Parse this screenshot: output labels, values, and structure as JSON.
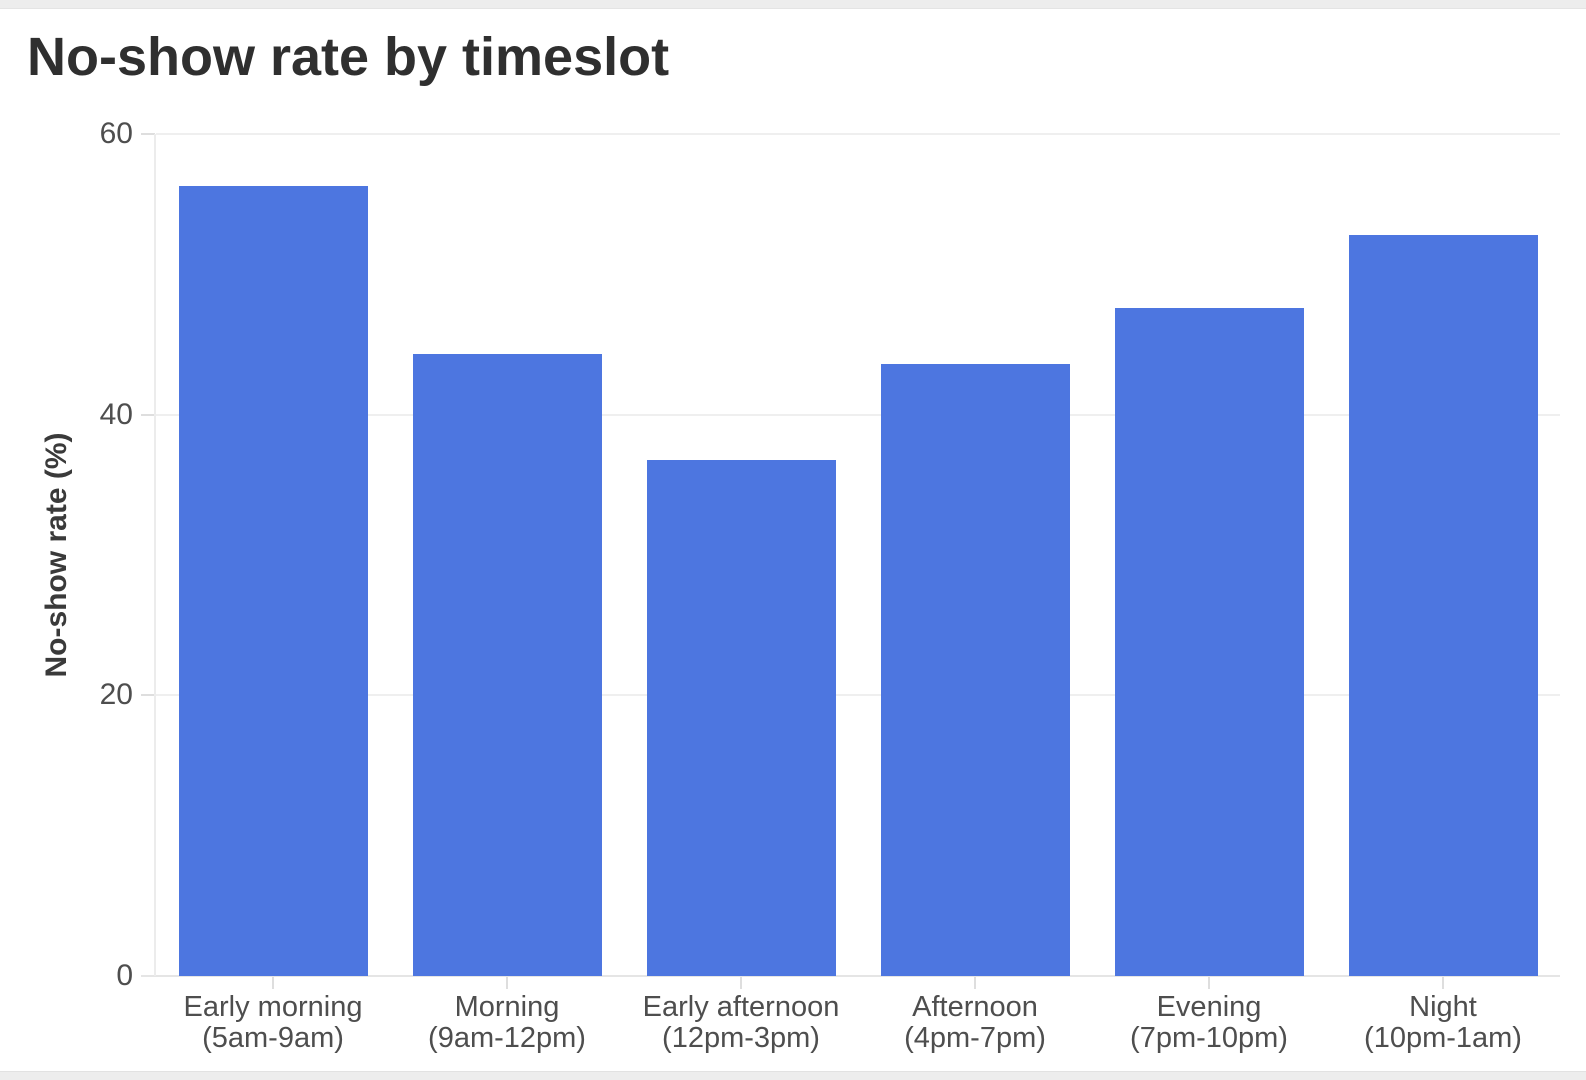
{
  "chart": {
    "title": "No-show rate by timeslot",
    "y_axis_title": "No-show rate (%)"
  },
  "colors": {
    "bar": "#4d76e0",
    "gridline": "#efefef",
    "axis_line": "#e5e5e5",
    "tick_text": "#4e4e4e",
    "title_text": "#2f2f2f"
  },
  "chart_data": {
    "type": "bar",
    "title": "No-show rate by timeslot",
    "xlabel": "",
    "ylabel": "No-show rate (%)",
    "categories": [
      "Early morning (5am-9am)",
      "Morning (9am-12pm)",
      "Early afternoon (12pm-3pm)",
      "Afternoon (4pm-7pm)",
      "Evening (7pm-10pm)",
      "Night (10pm-1am)"
    ],
    "category_labels": [
      {
        "line1": "Early morning",
        "line2": "(5am-9am)"
      },
      {
        "line1": "Morning",
        "line2": "(9am-12pm)"
      },
      {
        "line1": "Early afternoon",
        "line2": "(12pm-3pm)"
      },
      {
        "line1": "Afternoon",
        "line2": "(4pm-7pm)"
      },
      {
        "line1": "Evening",
        "line2": "(7pm-10pm)"
      },
      {
        "line1": "Night",
        "line2": "(10pm-1am)"
      }
    ],
    "values": [
      56.3,
      44.3,
      36.8,
      43.6,
      47.6,
      52.8
    ],
    "ylim": [
      0,
      60
    ],
    "y_ticks": [
      0,
      20,
      40,
      60
    ],
    "grid": "horizontal-only",
    "legend": "none",
    "bar_color": "#4d76e0"
  }
}
